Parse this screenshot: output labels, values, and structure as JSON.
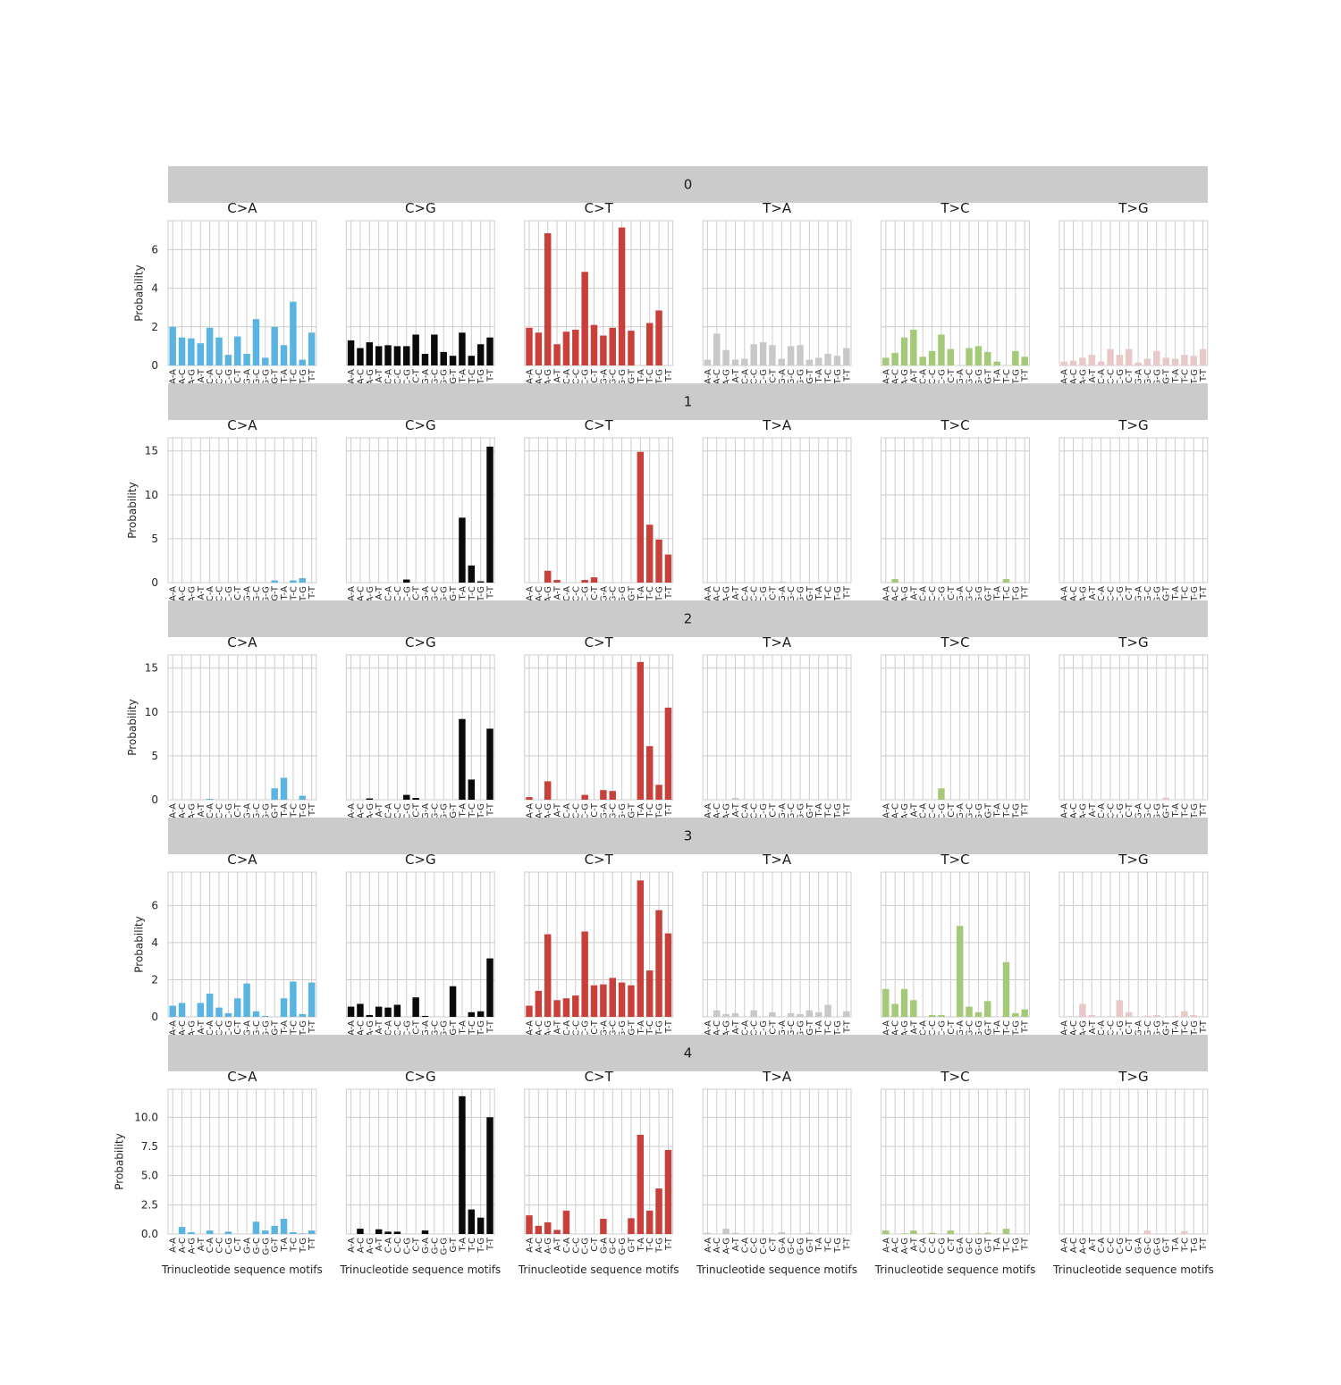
{
  "colors": {
    "C>A": "#5ab4e1",
    "C>G": "#0a0a0a",
    "C>T": "#c9403a",
    "T>A": "#c8c8c8",
    "T>C": "#a4c978",
    "T>G": "#e8c9c8",
    "strip": "#cbcbcb",
    "grid": "#cccccc"
  },
  "chart_data": {
    "type": "bar",
    "mutation_types": [
      "C>A",
      "C>G",
      "C>T",
      "T>A",
      "T>C",
      "T>G"
    ],
    "motifs": [
      "A-A",
      "A-C",
      "A-G",
      "A-T",
      "C-A",
      "C-C",
      "C-G",
      "C-T",
      "G-A",
      "G-C",
      "G-G",
      "G-T",
      "T-A",
      "T-C",
      "T-G",
      "T-T"
    ],
    "xlabel": "Trinucleotide sequence motifs",
    "ylabel": "Probability",
    "rows": [
      {
        "label": "0",
        "ylim": [
          0,
          7.5
        ],
        "yticks": [
          0,
          2,
          4,
          6
        ],
        "ytick_labels": [
          "0",
          "2",
          "4",
          "6"
        ],
        "panels": [
          {
            "title": "C>A",
            "values": [
              2.0,
              1.45,
              1.4,
              1.15,
              1.95,
              1.45,
              0.55,
              1.5,
              0.6,
              2.4,
              0.4,
              2.0,
              1.05,
              3.3,
              0.3,
              1.7
            ]
          },
          {
            "title": "C>G",
            "values": [
              1.3,
              0.9,
              1.2,
              1.0,
              1.05,
              1.0,
              1.0,
              1.6,
              0.6,
              1.6,
              0.7,
              0.5,
              1.7,
              0.5,
              1.1,
              1.45
            ]
          },
          {
            "title": "C>T",
            "values": [
              1.95,
              1.7,
              6.85,
              1.1,
              1.75,
              1.85,
              4.85,
              2.1,
              1.55,
              1.95,
              7.15,
              1.8,
              0.0,
              2.2,
              2.85,
              0.0
            ]
          },
          {
            "title": "T>A",
            "values": [
              0.3,
              1.65,
              0.8,
              0.3,
              0.35,
              1.1,
              1.2,
              1.05,
              0.35,
              1.0,
              1.05,
              0.3,
              0.4,
              0.6,
              0.5,
              0.9
            ]
          },
          {
            "title": "T>C",
            "values": [
              0.4,
              0.65,
              1.45,
              1.85,
              0.45,
              0.75,
              1.6,
              0.85,
              0.0,
              0.9,
              1.0,
              0.7,
              0.2,
              0.0,
              0.75,
              0.45
            ]
          },
          {
            "title": "T>G",
            "values": [
              0.2,
              0.25,
              0.4,
              0.55,
              0.2,
              0.85,
              0.55,
              0.85,
              0.15,
              0.35,
              0.75,
              0.4,
              0.35,
              0.55,
              0.5,
              0.85
            ]
          }
        ]
      },
      {
        "label": "1",
        "ylim": [
          0,
          16.5
        ],
        "yticks": [
          0,
          5,
          10,
          15
        ],
        "ytick_labels": [
          "0",
          "5",
          "10",
          "15"
        ],
        "panels": [
          {
            "title": "C>A",
            "values": [
              0,
              0,
              0,
              0,
              0,
              0,
              0,
              0,
              0,
              0,
              0,
              0.25,
              0,
              0.25,
              0.5,
              0
            ]
          },
          {
            "title": "C>G",
            "values": [
              0,
              0,
              0,
              0,
              0,
              0,
              0.35,
              0,
              0,
              0,
              0,
              0,
              7.4,
              1.95,
              0.15,
              15.5
            ]
          },
          {
            "title": "C>T",
            "values": [
              0,
              0,
              1.35,
              0.3,
              0,
              0,
              0.3,
              0.6,
              0,
              0,
              0,
              0,
              14.9,
              6.6,
              4.9,
              3.2
            ]
          },
          {
            "title": "T>A",
            "values": [
              0,
              0,
              0,
              0,
              0,
              0,
              0.05,
              0,
              0.1,
              0,
              0,
              0,
              0,
              0,
              0,
              0
            ]
          },
          {
            "title": "T>C",
            "values": [
              0,
              0.4,
              0,
              0,
              0,
              0,
              0,
              0,
              0,
              0,
              0,
              0,
              0,
              0.4,
              0,
              0
            ]
          },
          {
            "title": "T>G",
            "values": [
              0,
              0,
              0,
              0,
              0,
              0,
              0,
              0,
              0,
              0,
              0,
              0,
              0,
              0,
              0,
              0.05
            ]
          }
        ]
      },
      {
        "label": "2",
        "ylim": [
          0,
          16.5
        ],
        "yticks": [
          0,
          5,
          10,
          15
        ],
        "ytick_labels": [
          "0",
          "5",
          "10",
          "15"
        ],
        "panels": [
          {
            "title": "C>A",
            "values": [
              0,
              0,
              0,
              0,
              0.1,
              0,
              0,
              0,
              0,
              0,
              0,
              1.3,
              2.5,
              0,
              0.45,
              0
            ]
          },
          {
            "title": "C>G",
            "values": [
              0,
              0,
              0.15,
              0,
              0,
              0,
              0.55,
              0.2,
              0,
              0,
              0,
              0,
              9.2,
              2.3,
              0,
              8.1
            ]
          },
          {
            "title": "C>T",
            "values": [
              0.3,
              0,
              2.1,
              0,
              0,
              0,
              0.55,
              0,
              1.1,
              1.0,
              0,
              0,
              15.7,
              6.1,
              1.7,
              10.5
            ]
          },
          {
            "title": "T>A",
            "values": [
              0,
              0,
              0,
              0.2,
              0,
              0,
              0,
              0,
              0,
              0,
              0,
              0,
              0,
              0,
              0,
              0
            ]
          },
          {
            "title": "T>C",
            "values": [
              0,
              0,
              0,
              0,
              0,
              0,
              1.3,
              0,
              0,
              0,
              0,
              0,
              0,
              0,
              0,
              0
            ]
          },
          {
            "title": "T>G",
            "values": [
              0,
              0,
              0,
              0,
              0,
              0,
              0,
              0,
              0,
              0,
              0,
              0.25,
              0,
              0,
              0,
              0
            ]
          }
        ]
      },
      {
        "label": "3",
        "ylim": [
          0,
          7.8
        ],
        "yticks": [
          0,
          2,
          4,
          6
        ],
        "ytick_labels": [
          "0",
          "2",
          "4",
          "6"
        ],
        "panels": [
          {
            "title": "C>A",
            "values": [
              0.6,
              0.75,
              0,
              0.75,
              1.25,
              0.5,
              0.2,
              1.0,
              1.8,
              0.3,
              0.05,
              0,
              1.0,
              1.9,
              0.15,
              1.85
            ]
          },
          {
            "title": "C>G",
            "values": [
              0.55,
              0.7,
              0.1,
              0.55,
              0.5,
              0.65,
              0,
              1.05,
              0.05,
              0,
              0,
              1.65,
              0,
              0.25,
              0.3,
              3.15
            ]
          },
          {
            "title": "C>T",
            "values": [
              0.6,
              1.4,
              4.45,
              0.9,
              1.0,
              1.15,
              4.6,
              1.7,
              1.75,
              2.1,
              1.85,
              1.7,
              7.35,
              2.5,
              5.75,
              4.5
            ]
          },
          {
            "title": "T>A",
            "values": [
              0,
              0.35,
              0.15,
              0.2,
              0,
              0.35,
              0,
              0.25,
              0,
              0.2,
              0.15,
              0.35,
              0.25,
              0.65,
              0,
              0.3
            ]
          },
          {
            "title": "T>C",
            "values": [
              1.5,
              0.7,
              1.5,
              0.9,
              0,
              0.1,
              0.1,
              0,
              4.9,
              0.55,
              0.25,
              0.85,
              0,
              2.95,
              0.2,
              0.4
            ]
          },
          {
            "title": "T>G",
            "values": [
              0,
              0,
              0.7,
              0.1,
              0,
              0,
              0.9,
              0.25,
              0,
              0.05,
              0.1,
              0,
              0.05,
              0.3,
              0.1,
              0
            ]
          }
        ]
      },
      {
        "label": "4",
        "ylim": [
          0,
          12.4
        ],
        "yticks": [
          0.0,
          2.5,
          5.0,
          7.5,
          10.0
        ],
        "ytick_labels": [
          "0.0",
          "2.5",
          "5.0",
          "7.5",
          "10.0"
        ],
        "panels": [
          {
            "title": "C>A",
            "values": [
              0,
              0.6,
              0.15,
              0,
              0.3,
              0,
              0.2,
              0,
              0,
              1.05,
              0.3,
              0.7,
              1.3,
              0.15,
              0.05,
              0.3
            ]
          },
          {
            "title": "C>G",
            "values": [
              0,
              0.45,
              0,
              0.4,
              0.2,
              0.2,
              0,
              0,
              0.3,
              0,
              0,
              0,
              11.8,
              2.1,
              1.4,
              10.0
            ]
          },
          {
            "title": "C>T",
            "values": [
              1.6,
              0.7,
              1.0,
              0.35,
              2.0,
              0,
              0,
              0,
              1.3,
              0,
              0,
              1.35,
              8.5,
              2.0,
              3.9,
              7.2
            ]
          },
          {
            "title": "T>A",
            "values": [
              0.1,
              0,
              0.45,
              0.1,
              0,
              0,
              0,
              0,
              0.15,
              0,
              0,
              0.1,
              0,
              0,
              0,
              0
            ]
          },
          {
            "title": "T>C",
            "values": [
              0.3,
              0,
              0.05,
              0.3,
              0,
              0.1,
              0,
              0.3,
              0,
              0,
              0.05,
              0.1,
              0,
              0.45,
              0,
              0
            ]
          },
          {
            "title": "T>G",
            "values": [
              0,
              0,
              0,
              0,
              0,
              0,
              0,
              0,
              0,
              0.3,
              0.05,
              0.05,
              0,
              0.25,
              0.05,
              0
            ]
          }
        ]
      }
    ]
  }
}
